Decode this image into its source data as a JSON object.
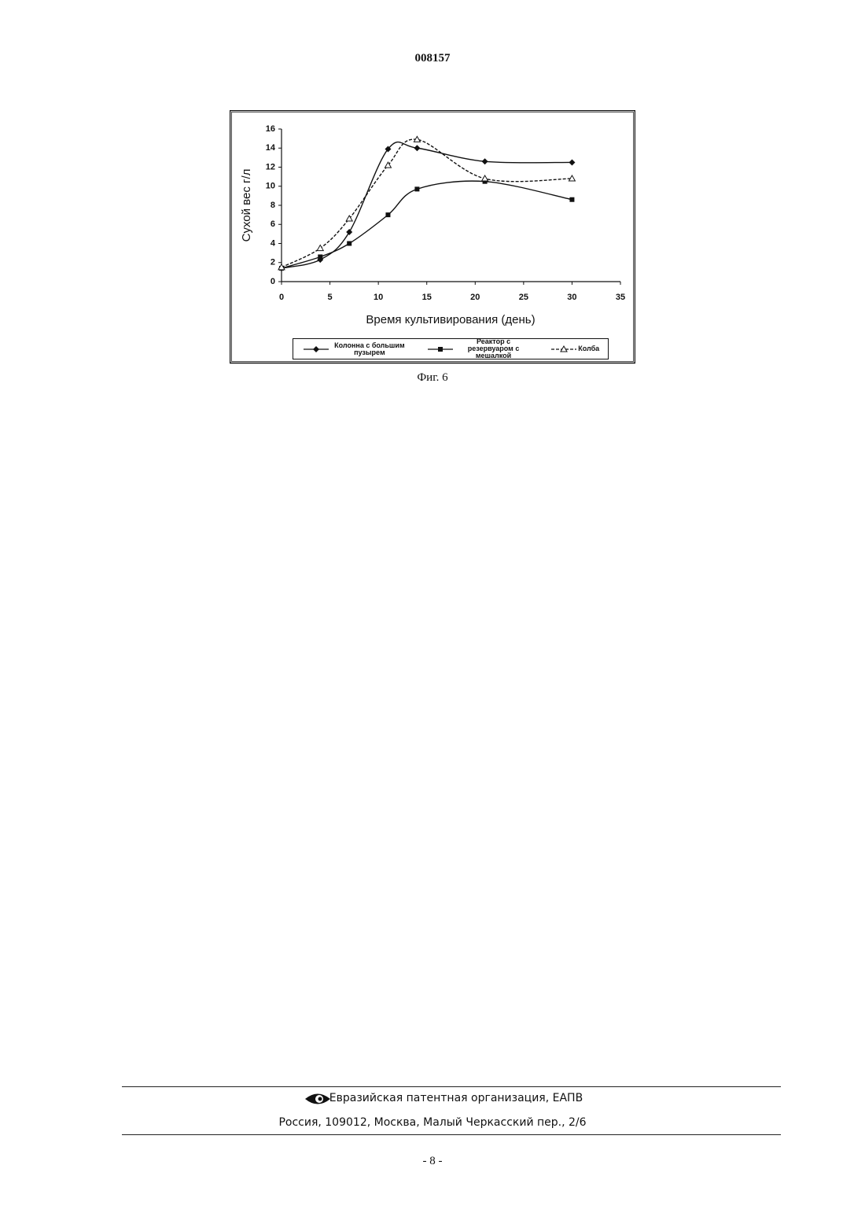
{
  "header": {
    "number": "008157"
  },
  "chart_data": {
    "type": "line",
    "xlabel": "Время культивирования (день)",
    "ylabel": "Сухой вес г/л",
    "x": [
      0,
      4,
      7,
      11,
      14,
      21,
      30
    ],
    "xlim": [
      0,
      35
    ],
    "xticks": [
      0,
      5,
      10,
      15,
      20,
      25,
      30,
      35
    ],
    "ylim": [
      0,
      16
    ],
    "yticks": [
      0,
      2,
      4,
      6,
      8,
      10,
      12,
      14,
      16
    ],
    "series": [
      {
        "name": "Колонна с большим пузырем",
        "color": "#111111",
        "marker": "diamond",
        "line_style": "solid",
        "values": [
          1.4,
          2.3,
          5.2,
          13.9,
          14.0,
          12.6,
          12.5
        ]
      },
      {
        "name": "Реактор с резервуаром с мешалкой",
        "color": "#111111",
        "marker": "square",
        "line_style": "solid",
        "values": [
          1.4,
          2.6,
          4.0,
          7.0,
          9.7,
          10.5,
          8.6
        ]
      },
      {
        "name": "Колба",
        "color": "#111111",
        "marker": "triangle",
        "line_style": "dashed",
        "values": [
          1.5,
          3.5,
          6.6,
          12.2,
          14.9,
          10.8,
          10.8
        ]
      }
    ]
  },
  "caption": "Фиг. 6",
  "footer": {
    "organization": "Евразийская патентная организация, ЕАПВ",
    "address": "Россия, 109012, Москва, Малый Черкасский пер., 2/6"
  },
  "page_number": "- 8 -"
}
